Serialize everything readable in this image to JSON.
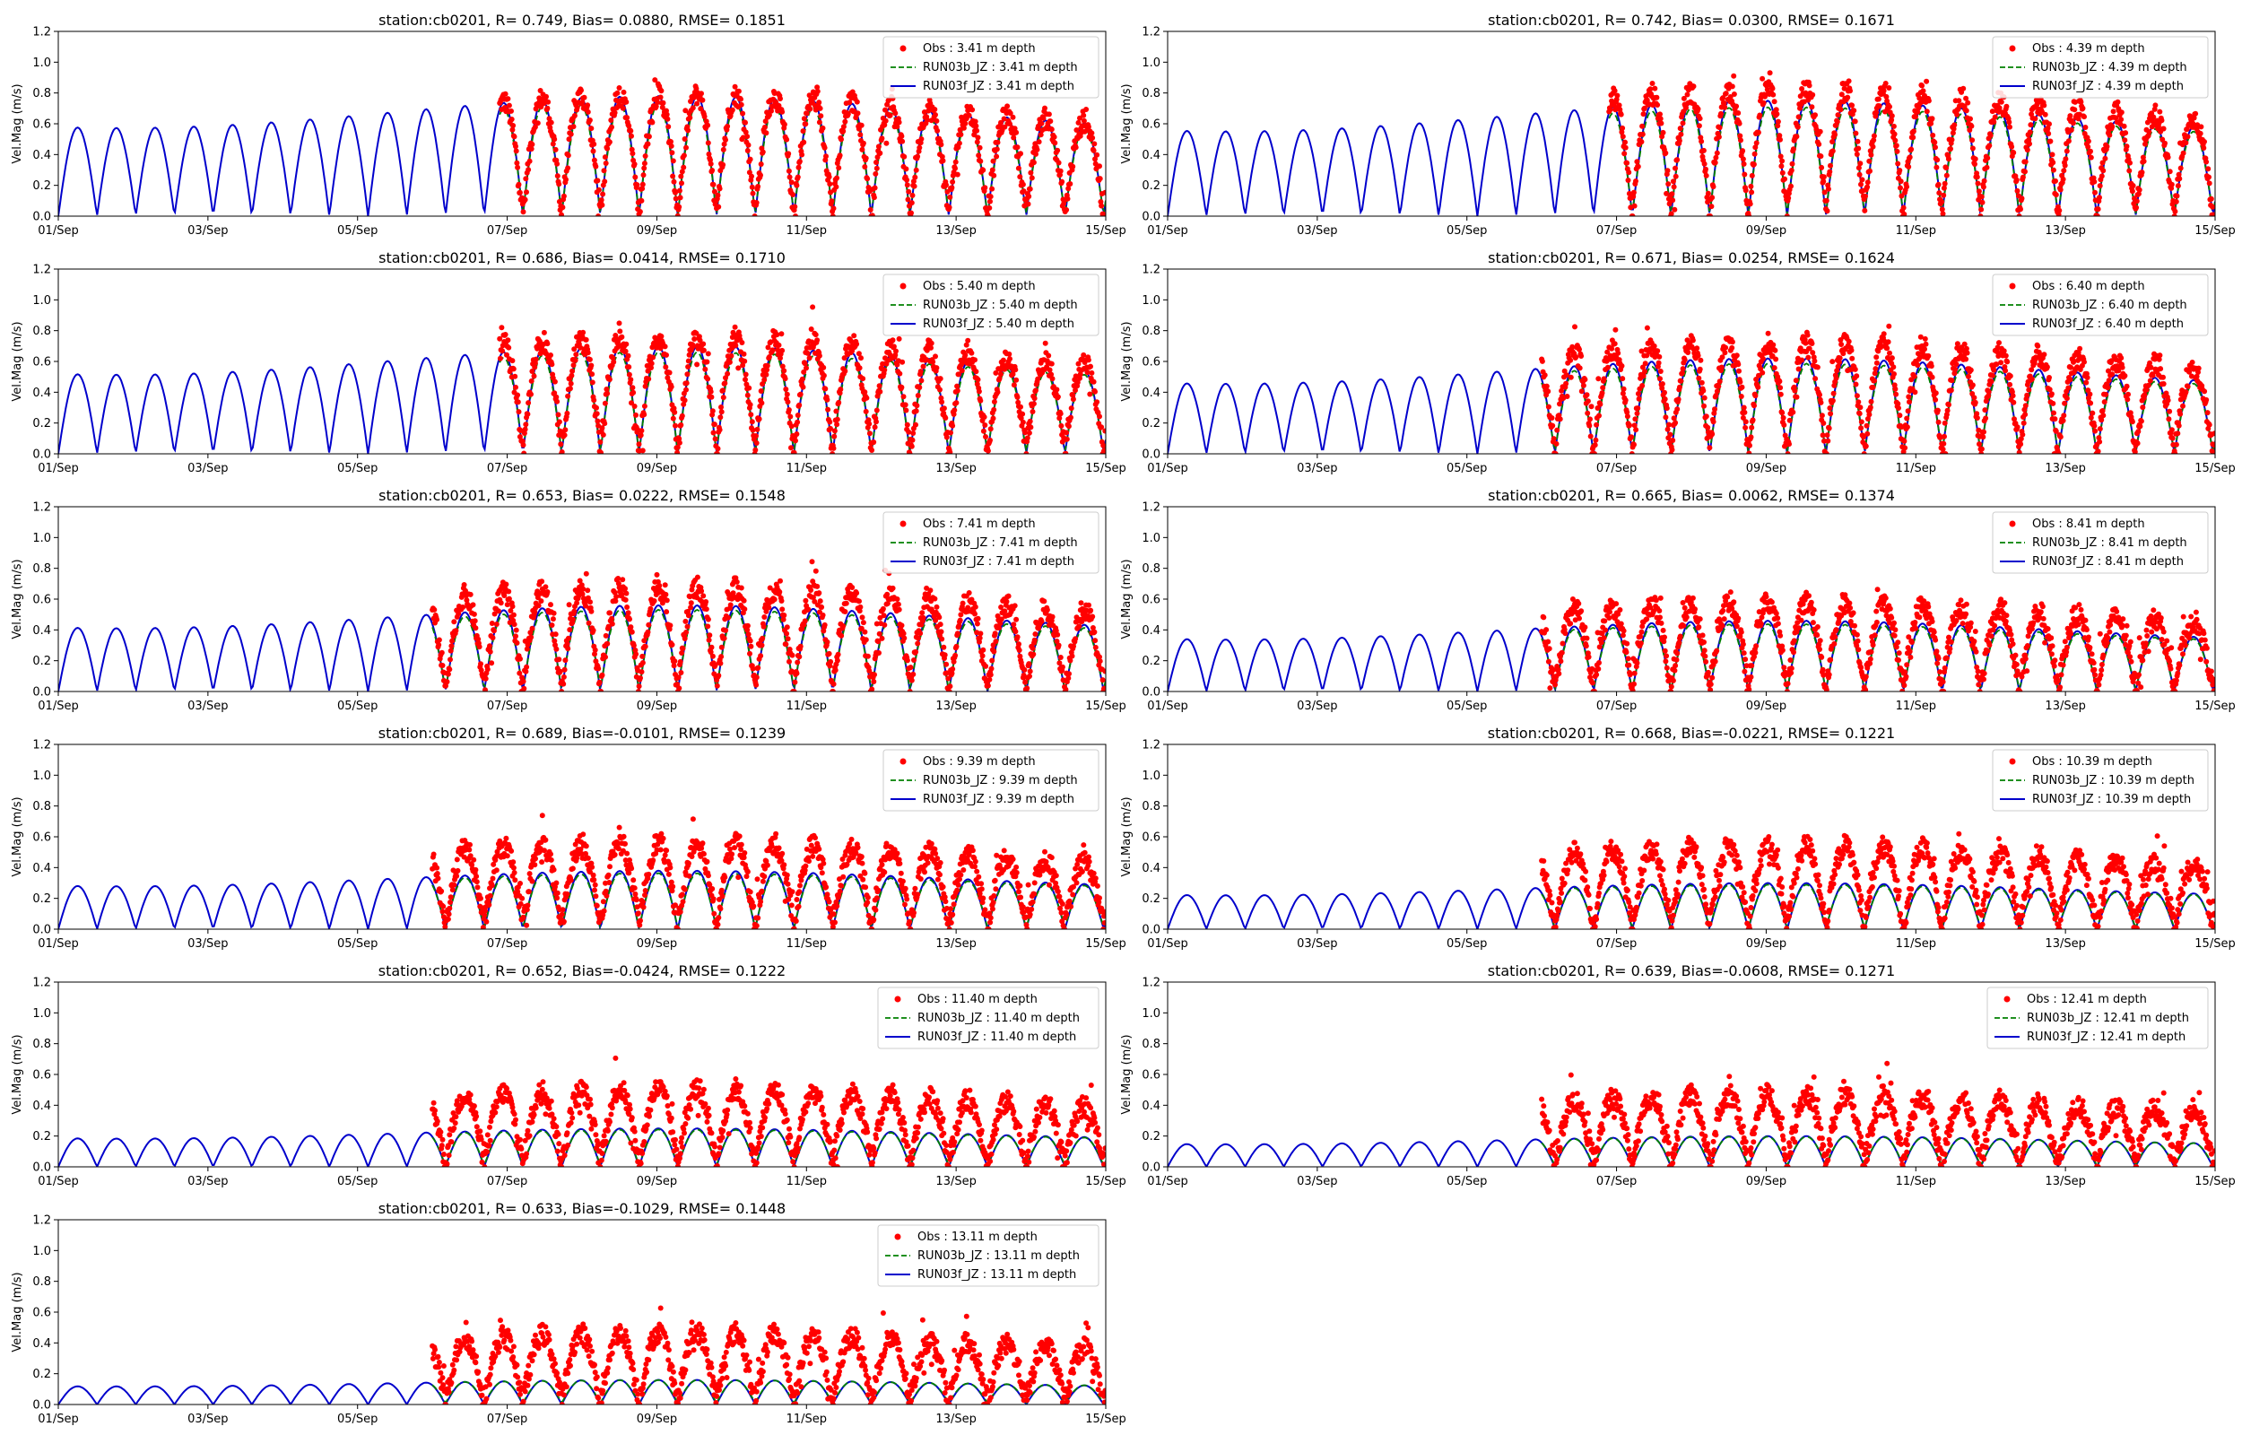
{
  "figure": {
    "x_categories": [
      "01/Sep",
      "03/Sep",
      "05/Sep",
      "07/Sep",
      "09/Sep",
      "11/Sep",
      "13/Sep",
      "15/Sep"
    ],
    "y_ticks": [
      "0.0",
      "0.2",
      "0.4",
      "0.6",
      "0.8",
      "1.0",
      "1.2"
    ],
    "ylabel": "Vel.Mag (m/s)",
    "colors": {
      "obs": "#ff0000",
      "run03b": "#008000",
      "run03f": "#0000cc",
      "axis": "#000000"
    }
  },
  "chart_data": [
    {
      "type": "line",
      "title": "station:cb0201, R= 0.749, Bias= 0.0880, RMSE= 0.1851",
      "xlabel": "",
      "ylabel": "Vel.Mag (m/s)",
      "ylim": [
        0,
        1.2
      ],
      "xlim_days": [
        0,
        14
      ],
      "obs_start_day": 5.9,
      "amp": 0.78,
      "obs_amp": 0.82,
      "legend_position": "top-right",
      "legend": [
        "Obs : 3.41 m depth",
        "RUN03b_JZ : 3.41 m depth",
        "RUN03f_JZ : 3.41 m depth"
      ]
    },
    {
      "type": "line",
      "title": "station:cb0201, R= 0.742, Bias= 0.0300, RMSE= 0.1671",
      "xlabel": "",
      "ylabel": "Vel.Mag (m/s)",
      "ylim": [
        0,
        1.2
      ],
      "xlim_days": [
        0,
        14
      ],
      "obs_start_day": 5.9,
      "amp": 0.75,
      "obs_amp": 0.85,
      "legend_position": "top-right",
      "legend": [
        "Obs : 4.39 m depth",
        "RUN03b_JZ : 4.39 m depth",
        "RUN03f_JZ : 4.39 m depth"
      ]
    },
    {
      "type": "line",
      "title": "station:cb0201, R= 0.686, Bias= 0.0414, RMSE= 0.1710",
      "xlabel": "",
      "ylabel": "Vel.Mag (m/s)",
      "ylim": [
        0,
        1.2
      ],
      "xlim_days": [
        0,
        14
      ],
      "obs_start_day": 5.9,
      "amp": 0.7,
      "obs_amp": 0.78,
      "legend_position": "top-right",
      "legend": [
        "Obs : 5.40 m depth",
        "RUN03b_JZ : 5.40 m depth",
        "RUN03f_JZ : 5.40 m depth"
      ]
    },
    {
      "type": "line",
      "title": "station:cb0201, R= 0.671, Bias= 0.0254, RMSE= 0.1624",
      "xlabel": "",
      "ylabel": "Vel.Mag (m/s)",
      "ylim": [
        0,
        1.2
      ],
      "xlim_days": [
        0,
        14
      ],
      "obs_start_day": 5.0,
      "amp": 0.62,
      "obs_amp": 0.75,
      "legend_position": "top-right",
      "legend": [
        "Obs : 6.40 m depth",
        "RUN03b_JZ : 6.40 m depth",
        "RUN03f_JZ : 6.40 m depth"
      ]
    },
    {
      "type": "line",
      "title": "station:cb0201, R= 0.653, Bias= 0.0222, RMSE= 0.1548",
      "xlabel": "",
      "ylabel": "Vel.Mag (m/s)",
      "ylim": [
        0,
        1.2
      ],
      "xlim_days": [
        0,
        14
      ],
      "obs_start_day": 5.0,
      "amp": 0.56,
      "obs_amp": 0.7,
      "legend_position": "top-right",
      "legend": [
        "Obs : 7.41 m depth",
        "RUN03b_JZ : 7.41 m depth",
        "RUN03f_JZ : 7.41 m depth"
      ]
    },
    {
      "type": "line",
      "title": "station:cb0201, R= 0.665, Bias= 0.0062, RMSE= 0.1374",
      "xlabel": "",
      "ylabel": "Vel.Mag (m/s)",
      "ylim": [
        0,
        1.2
      ],
      "xlim_days": [
        0,
        14
      ],
      "obs_start_day": 5.0,
      "amp": 0.46,
      "obs_amp": 0.6,
      "legend_position": "top-right",
      "legend": [
        "Obs : 8.41 m depth",
        "RUN03b_JZ : 8.41 m depth",
        "RUN03f_JZ : 8.41 m depth"
      ]
    },
    {
      "type": "line",
      "title": "station:cb0201, R= 0.689, Bias=-0.0101, RMSE= 0.1239",
      "xlabel": "",
      "ylabel": "Vel.Mag (m/s)",
      "ylim": [
        0,
        1.2
      ],
      "xlim_days": [
        0,
        14
      ],
      "obs_start_day": 5.0,
      "amp": 0.38,
      "obs_amp": 0.58,
      "legend_position": "top-right",
      "legend": [
        "Obs : 9.39 m depth",
        "RUN03b_JZ : 9.39 m depth",
        "RUN03f_JZ : 9.39 m depth"
      ]
    },
    {
      "type": "line",
      "title": "station:cb0201, R= 0.668, Bias=-0.0221, RMSE= 0.1221",
      "xlabel": "",
      "ylabel": "Vel.Mag (m/s)",
      "ylim": [
        0,
        1.2
      ],
      "xlim_days": [
        0,
        14
      ],
      "obs_start_day": 5.0,
      "amp": 0.3,
      "obs_amp": 0.56,
      "legend_position": "top-right",
      "legend": [
        "Obs : 10.39 m depth",
        "RUN03b_JZ : 10.39 m depth",
        "RUN03f_JZ : 10.39 m depth"
      ]
    },
    {
      "type": "line",
      "title": "station:cb0201, R= 0.652, Bias=-0.0424, RMSE= 0.1222",
      "xlabel": "",
      "ylabel": "Vel.Mag (m/s)",
      "ylim": [
        0,
        1.2
      ],
      "xlim_days": [
        0,
        14
      ],
      "obs_start_day": 5.0,
      "amp": 0.25,
      "obs_amp": 0.52,
      "legend_position": "top-right",
      "legend": [
        "Obs : 11.40 m depth",
        "RUN03b_JZ : 11.40 m depth",
        "RUN03f_JZ : 11.40 m depth"
      ]
    },
    {
      "type": "line",
      "title": "station:cb0201, R= 0.639, Bias=-0.0608, RMSE= 0.1271",
      "xlabel": "",
      "ylabel": "Vel.Mag (m/s)",
      "ylim": [
        0,
        1.2
      ],
      "xlim_days": [
        0,
        14
      ],
      "obs_start_day": 5.0,
      "amp": 0.2,
      "obs_amp": 0.48,
      "legend_position": "top-right",
      "legend": [
        "Obs : 12.41 m depth",
        "RUN03b_JZ : 12.41 m depth",
        "RUN03f_JZ : 12.41 m depth"
      ]
    },
    {
      "type": "line",
      "title": "station:cb0201, R= 0.633, Bias=-0.1029, RMSE= 0.1448",
      "xlabel": "",
      "ylabel": "Vel.Mag (m/s)",
      "ylim": [
        0,
        1.2
      ],
      "xlim_days": [
        0,
        14
      ],
      "obs_start_day": 5.0,
      "amp": 0.16,
      "obs_amp": 0.48,
      "legend_position": "top-right",
      "legend": [
        "Obs : 13.11 m depth",
        "RUN03b_JZ : 13.11 m depth",
        "RUN03f_JZ : 13.11 m depth"
      ]
    }
  ]
}
